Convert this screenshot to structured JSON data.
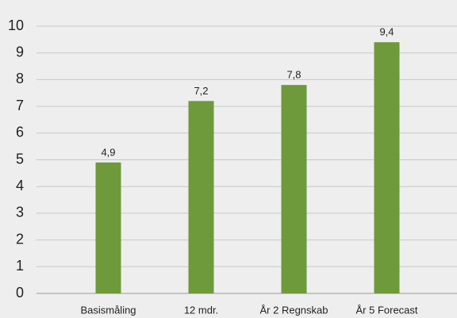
{
  "chart_data": {
    "type": "bar",
    "categories": [
      "Basismåling",
      "12 mdr.",
      "År 2 Regnskab",
      "År 5 Forecast"
    ],
    "values": [
      4.9,
      7.2,
      7.8,
      9.4
    ],
    "value_labels": [
      "4,9",
      "7,2",
      "7,8",
      "9,4"
    ],
    "color": "#6e9a3b",
    "ylim": [
      0,
      10
    ],
    "yticks": [
      0,
      1,
      2,
      3,
      4,
      5,
      6,
      7,
      8,
      9,
      10
    ],
    "grid": true
  }
}
